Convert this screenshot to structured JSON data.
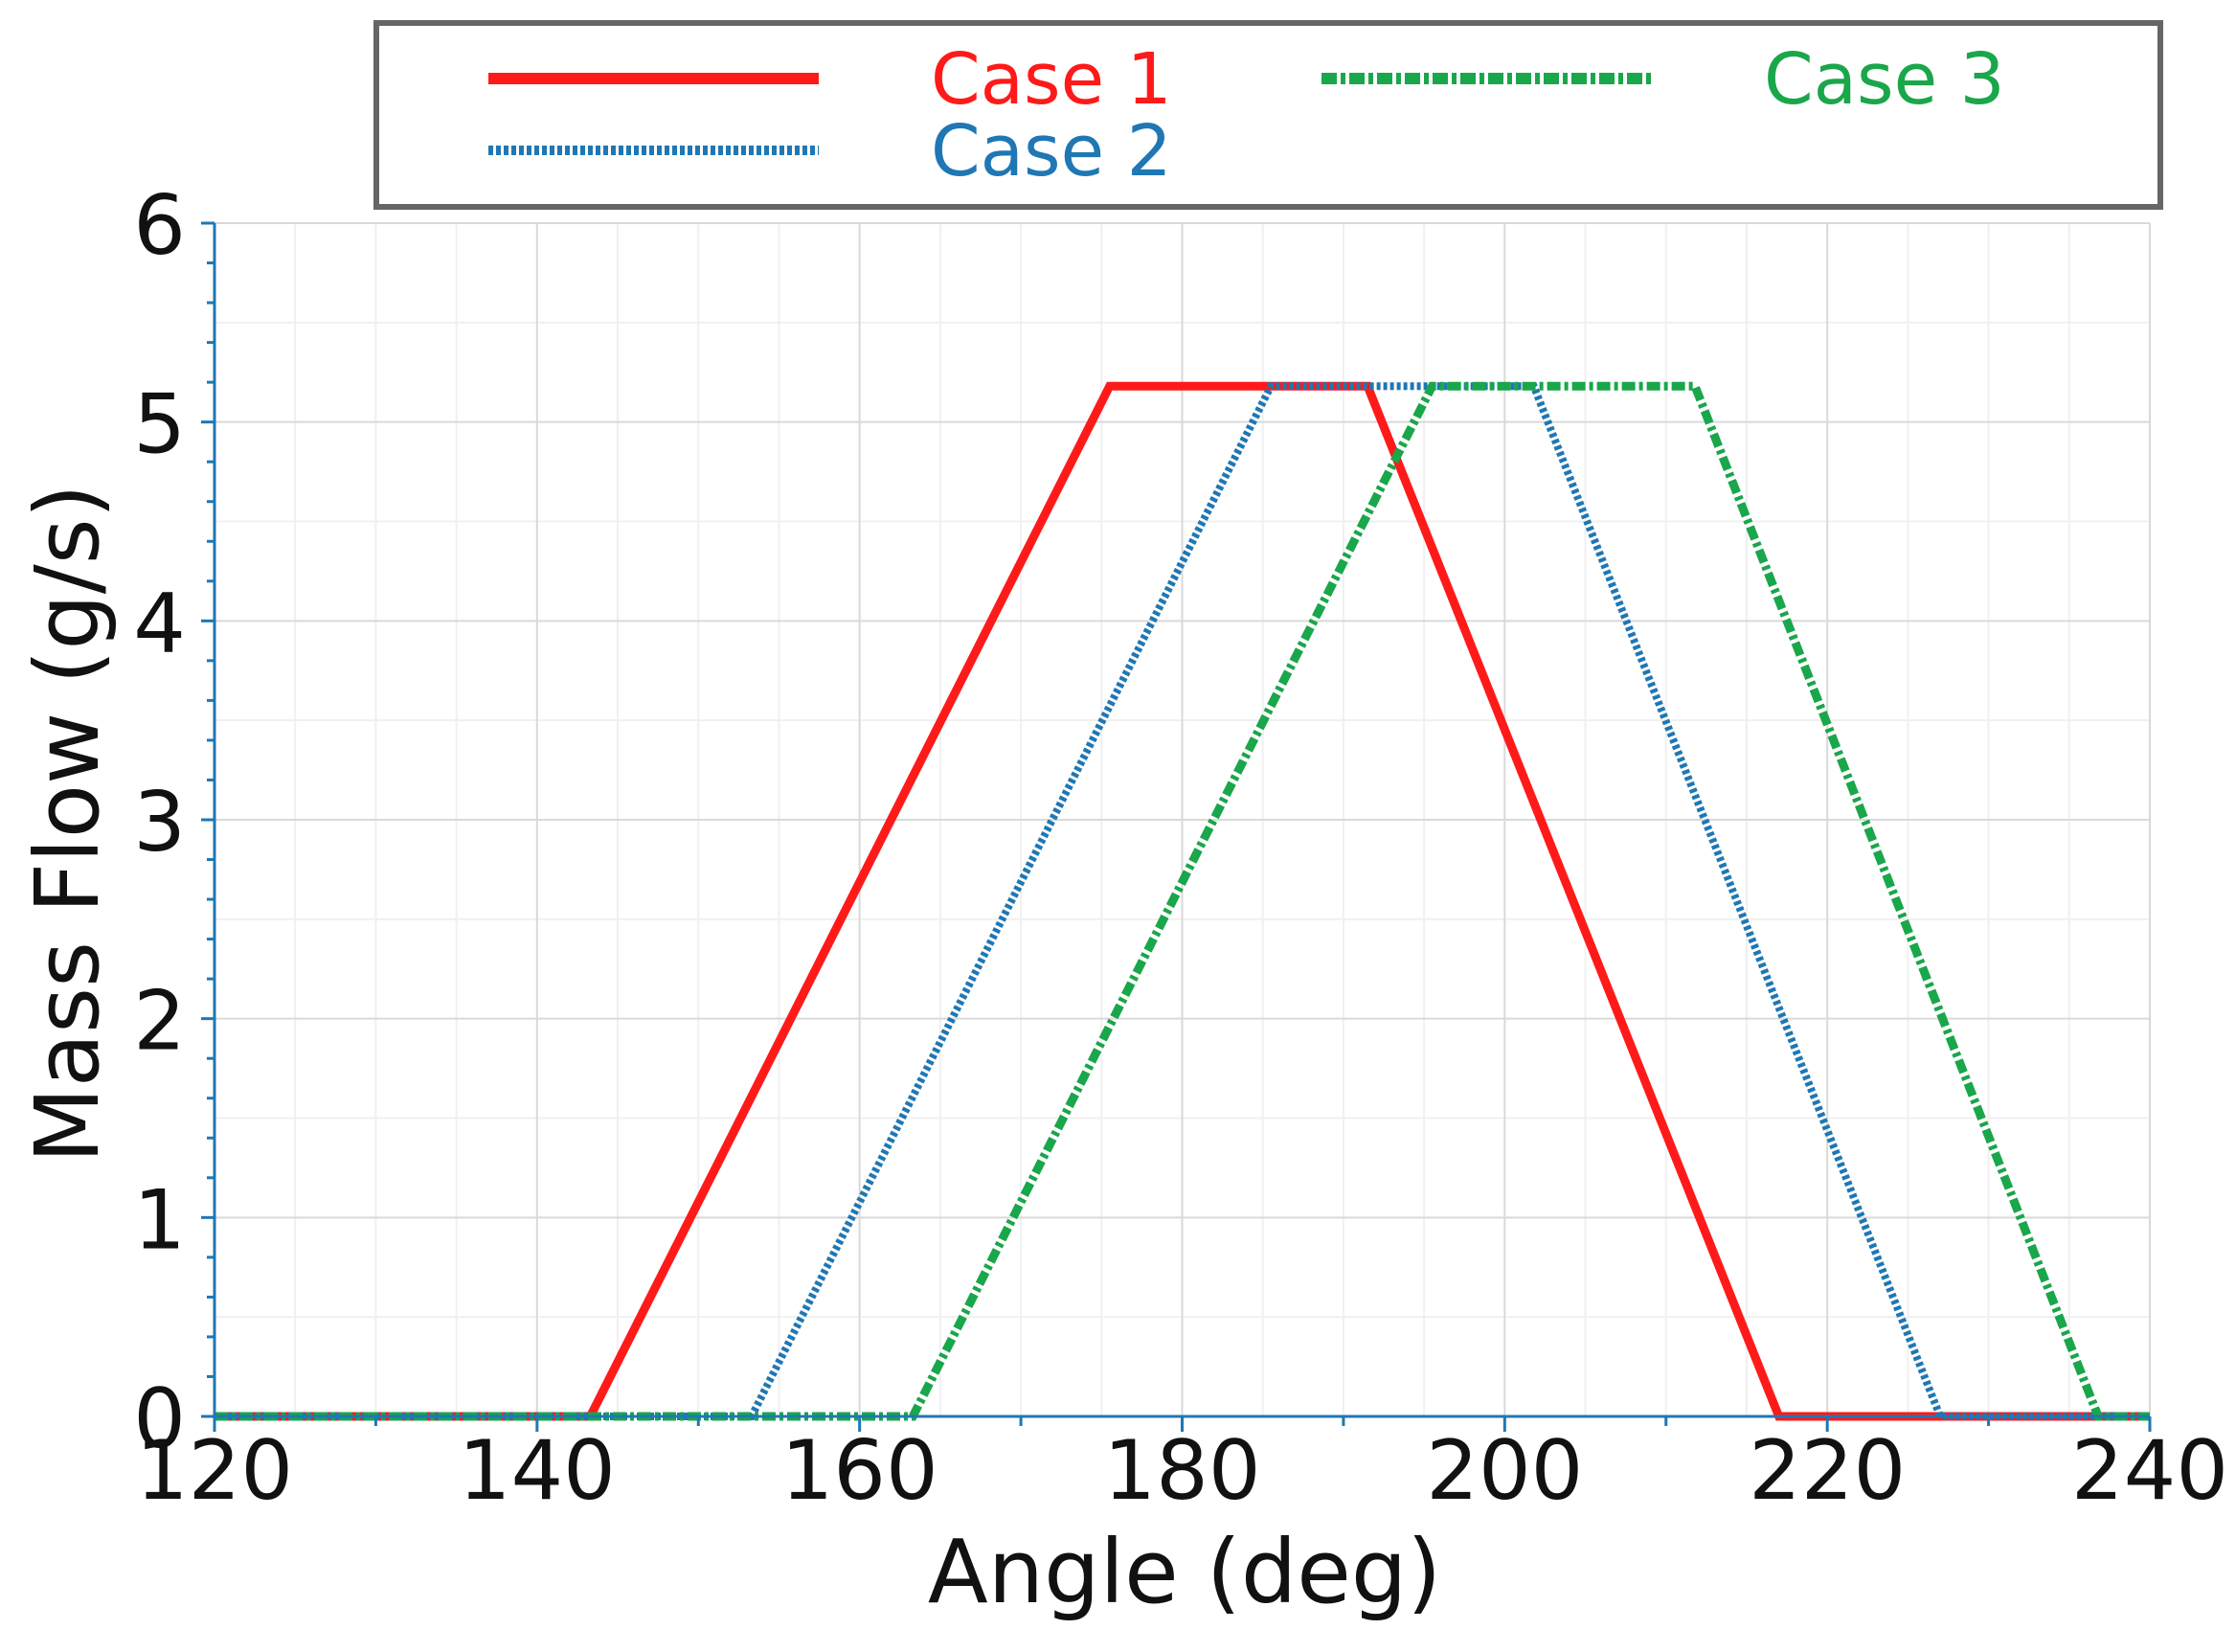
{
  "chart_data": {
    "type": "line",
    "title": "",
    "xlabel": "Angle (deg)",
    "ylabel": "Mass Flow (g/s)",
    "xlim": [
      120,
      240
    ],
    "ylim": [
      0,
      6
    ],
    "x_ticks": [
      120,
      140,
      160,
      180,
      200,
      220,
      240
    ],
    "y_ticks": [
      0,
      1,
      2,
      3,
      4,
      5,
      6
    ],
    "x_tick_labels": [
      "120",
      "140",
      "160",
      "180",
      "200",
      "220",
      "240"
    ],
    "y_tick_labels": [
      "0",
      "1",
      "2",
      "3",
      "4",
      "5",
      "6"
    ],
    "grid": true,
    "legend_position": "top",
    "series": [
      {
        "name": "Case 1",
        "color": "#ff1a1a",
        "style": "solid",
        "x": [
          120,
          143.3,
          175.5,
          191.5,
          217.0,
          240
        ],
        "y": [
          0,
          0,
          5.18,
          5.18,
          0,
          0
        ]
      },
      {
        "name": "Case 2",
        "color": "#1f77b4",
        "style": "dotted",
        "x": [
          120,
          153.3,
          185.5,
          201.8,
          227.0,
          240
        ],
        "y": [
          0,
          0,
          5.18,
          5.18,
          0,
          0
        ]
      },
      {
        "name": "Case 3",
        "color": "#1aa64a",
        "style": "dashdot",
        "x": [
          120,
          163.3,
          195.5,
          211.8,
          236.8,
          240
        ],
        "y": [
          0,
          0,
          5.18,
          5.18,
          0,
          0
        ]
      }
    ]
  }
}
